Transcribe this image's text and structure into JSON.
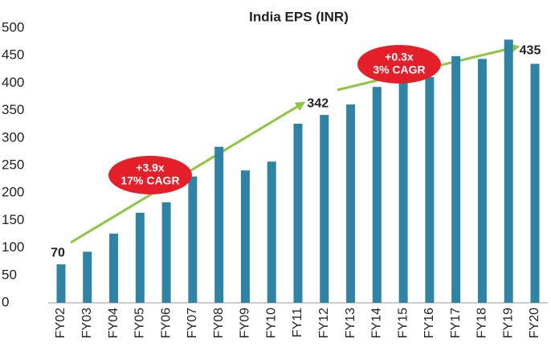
{
  "chart_data": {
    "type": "bar",
    "title": "India EPS (INR)",
    "categories": [
      "FY02",
      "FY03",
      "FY04",
      "FY05",
      "FY06",
      "FY07",
      "FY08",
      "FY09",
      "FY10",
      "FY11",
      "FY12",
      "FY13",
      "FY14",
      "FY15",
      "FY16",
      "FY17",
      "FY18",
      "FY19",
      "FY20"
    ],
    "values": [
      70,
      93,
      126,
      164,
      183,
      230,
      284,
      241,
      257,
      326,
      342,
      361,
      393,
      405,
      411,
      449,
      444,
      479,
      435
    ],
    "value_labels": [
      "70",
      null,
      null,
      null,
      null,
      null,
      null,
      null,
      null,
      null,
      "342",
      null,
      null,
      null,
      null,
      null,
      null,
      null,
      "435"
    ],
    "color": "#2f84a6",
    "ylim": [
      0,
      500
    ],
    "yticks": [
      0,
      50,
      100,
      150,
      200,
      250,
      300,
      350,
      400,
      450,
      500
    ],
    "annotations": [
      [
        "+3.9x",
        "17% CAGR"
      ],
      [
        "+0.3x",
        "3% CAGR"
      ]
    ]
  }
}
